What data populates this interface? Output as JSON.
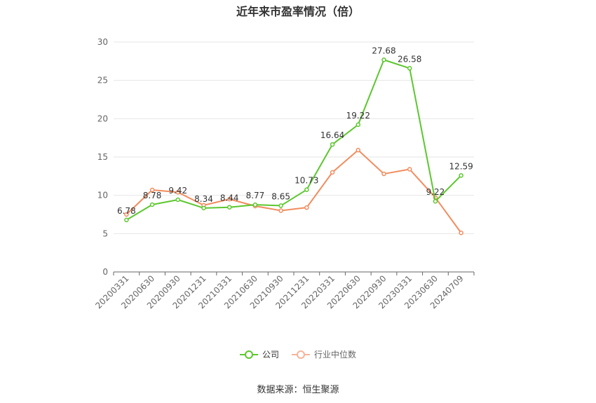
{
  "title": "近年来市盈率情况（倍）",
  "source": "数据来源：恒生聚源",
  "chart_data": {
    "type": "line",
    "categories": [
      "20200331",
      "20200630",
      "20200930",
      "20201231",
      "20210331",
      "20210630",
      "20210930",
      "20211231",
      "20220331",
      "20220630",
      "20220930",
      "20230331",
      "20230630",
      "20240709"
    ],
    "ylim": [
      0,
      30
    ],
    "yticks": [
      0,
      5,
      10,
      15,
      20,
      25,
      30
    ],
    "grid": true,
    "legend_position": "bottom",
    "series": [
      {
        "name": "公司",
        "color": "#5cc72e",
        "labels": [
          "6.78",
          "8.78",
          "9.42",
          "8.34",
          "8.44",
          "8.77",
          "8.65",
          "10.73",
          "16.64",
          "19.22",
          "27.68",
          "26.58",
          "9.22",
          "12.59"
        ],
        "values": [
          6.78,
          8.78,
          9.42,
          8.34,
          8.44,
          8.77,
          8.65,
          10.73,
          16.64,
          19.22,
          27.68,
          26.58,
          9.22,
          12.59
        ]
      },
      {
        "name": "行业中位数",
        "color": "#f28c5e",
        "values": [
          7.5,
          10.7,
          10.4,
          8.7,
          9.5,
          8.6,
          8.0,
          8.4,
          13.0,
          15.9,
          12.8,
          13.4,
          9.7,
          5.1
        ]
      }
    ]
  }
}
